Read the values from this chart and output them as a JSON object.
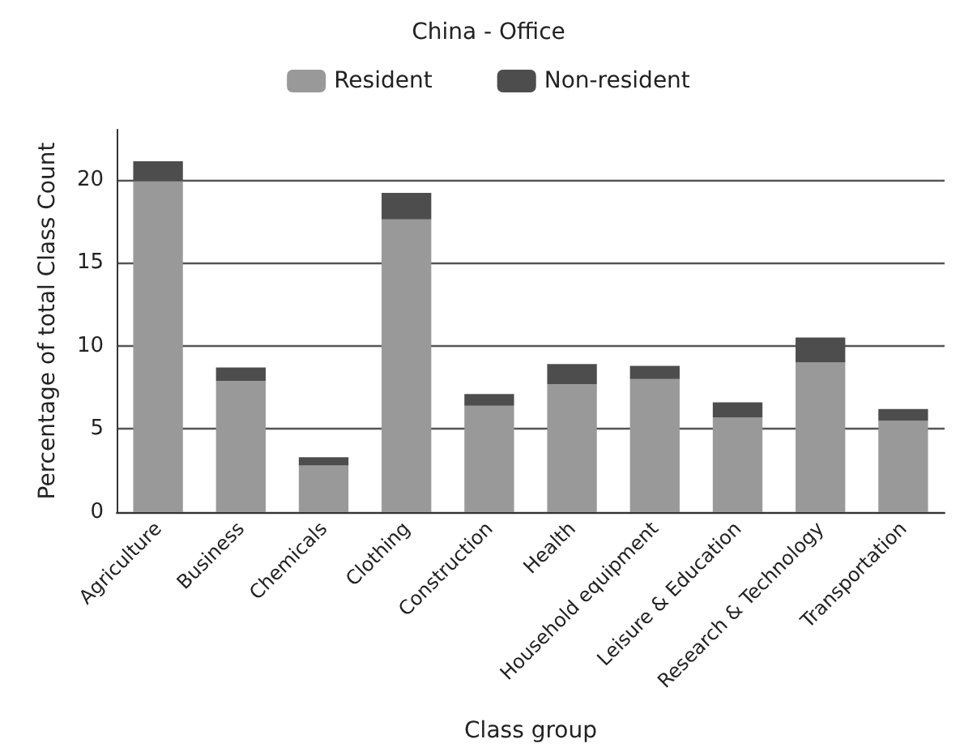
{
  "chart_data": {
    "type": "bar",
    "title": "China - Office",
    "xlabel": "Class group",
    "ylabel": "Percentage of total Class Count",
    "categories": [
      "Agriculture",
      "Business",
      "Chemicals",
      "Clothing",
      "Construction",
      "Health",
      "Household equipment",
      "Leisure & Education",
      "Research & Technology",
      "Transportation"
    ],
    "series": [
      {
        "name": "Resident",
        "color": "#999999",
        "values": [
          19.9,
          7.9,
          2.8,
          17.6,
          6.4,
          7.7,
          8.0,
          5.7,
          9.0,
          5.5
        ]
      },
      {
        "name": "Non-resident",
        "color": "#4d4d4d",
        "values": [
          1.2,
          0.8,
          0.5,
          1.6,
          0.7,
          1.2,
          0.8,
          0.9,
          1.5,
          0.7
        ]
      }
    ],
    "stacked": true,
    "ylim": [
      0,
      23
    ],
    "yticks": [
      0,
      5,
      10,
      15,
      20
    ],
    "grid": "y",
    "legend": "top"
  }
}
